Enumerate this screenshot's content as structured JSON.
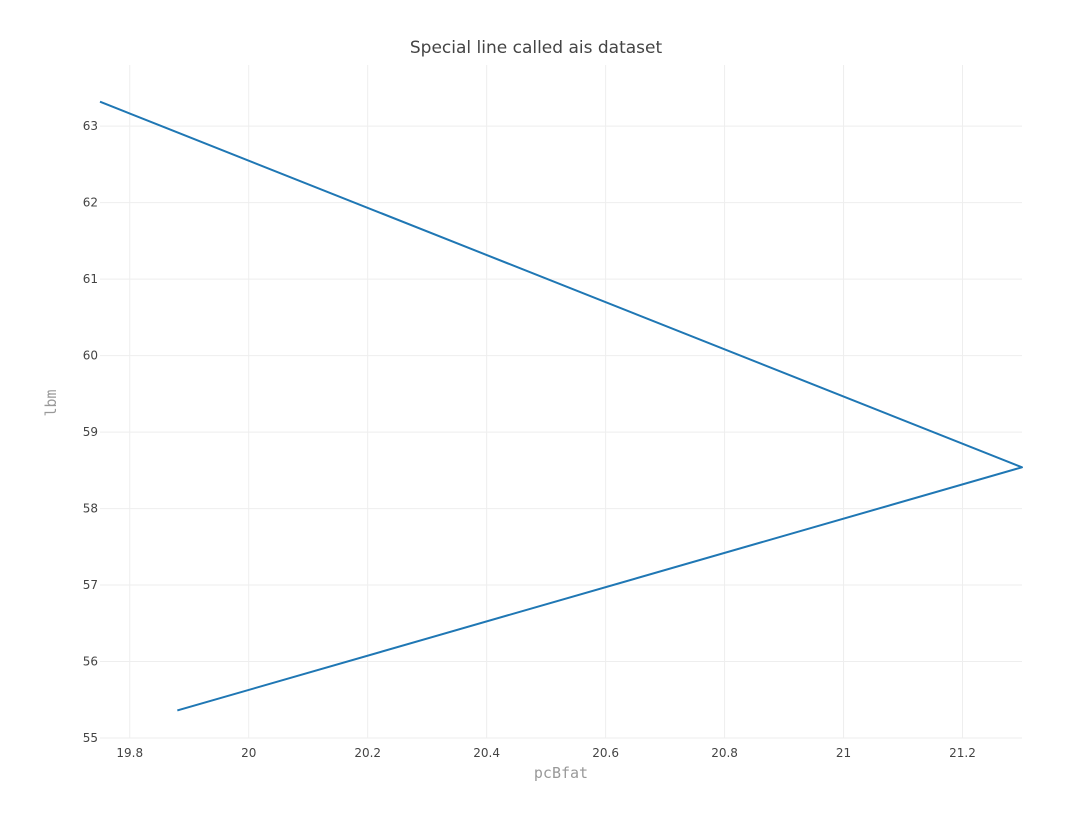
{
  "chart_data": {
    "type": "line",
    "title": "Special line called ais dataset",
    "xlabel": "pcBfat",
    "ylabel": "lbm",
    "xlim": [
      19.75,
      21.3
    ],
    "ylim": [
      55,
      63.8
    ],
    "grid": true,
    "legend": "none",
    "x_ticks": [
      19.8,
      20,
      20.2,
      20.4,
      20.6,
      20.8,
      21,
      21.2
    ],
    "x_tick_labels": [
      "19.8",
      "20",
      "20.2",
      "20.4",
      "20.6",
      "20.8",
      "21",
      "21.2"
    ],
    "y_ticks": [
      55,
      56,
      57,
      58,
      59,
      60,
      61,
      62,
      63
    ],
    "y_tick_labels": [
      "55",
      "56",
      "57",
      "58",
      "59",
      "60",
      "61",
      "62",
      "63"
    ],
    "series": [
      {
        "color": "#1f77b4",
        "x": [
          19.75,
          21.3,
          19.88
        ],
        "y": [
          63.32,
          58.54,
          55.36
        ]
      }
    ]
  }
}
